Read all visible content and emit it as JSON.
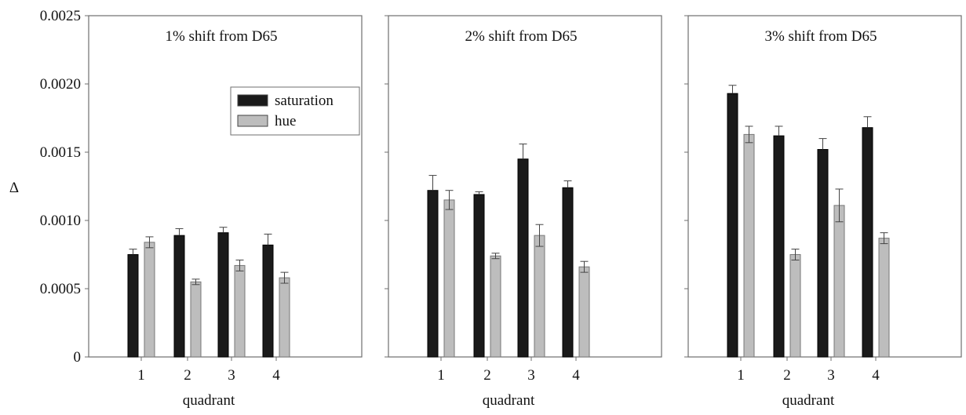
{
  "chart_data": {
    "type": "bar",
    "ylabel": "Δ",
    "ylim": [
      0,
      0.0025
    ],
    "yticks": [
      "0",
      "0.0005",
      "0.0010",
      "0.0015",
      "0.0020",
      "0.0025"
    ],
    "ytick_values": [
      0,
      0.0005,
      0.001,
      0.0015,
      0.002,
      0.0025
    ],
    "legend": {
      "placement": "top-right of first panel",
      "entries": [
        {
          "name": "saturation",
          "color": "#1a1a1a"
        },
        {
          "name": "hue",
          "color": "#bdbdbd"
        }
      ]
    },
    "panels": [
      {
        "title": "1% shift from D65",
        "xlabel": "quadrant",
        "categories": [
          "1",
          "2",
          "3",
          "4"
        ],
        "series": [
          {
            "name": "saturation",
            "values": [
              0.00075,
              0.00089,
              0.00091,
              0.00082
            ],
            "errors": [
              4e-05,
              5e-05,
              4e-05,
              8e-05
            ]
          },
          {
            "name": "hue",
            "values": [
              0.00084,
              0.00055,
              0.00067,
              0.00058
            ],
            "errors": [
              4e-05,
              2e-05,
              4e-05,
              4e-05
            ]
          }
        ]
      },
      {
        "title": "2% shift from D65",
        "xlabel": "quadrant",
        "categories": [
          "1",
          "2",
          "3",
          "4"
        ],
        "series": [
          {
            "name": "saturation",
            "values": [
              0.00122,
              0.00119,
              0.00145,
              0.00124
            ],
            "errors": [
              0.00011,
              2e-05,
              0.00011,
              5e-05
            ]
          },
          {
            "name": "hue",
            "values": [
              0.00115,
              0.00074,
              0.00089,
              0.00066
            ],
            "errors": [
              7e-05,
              2e-05,
              8e-05,
              4e-05
            ]
          }
        ]
      },
      {
        "title": "3% shift from D65",
        "xlabel": "quadrant",
        "categories": [
          "1",
          "2",
          "3",
          "4"
        ],
        "series": [
          {
            "name": "saturation",
            "values": [
              0.00193,
              0.00162,
              0.00152,
              0.00168
            ],
            "errors": [
              6e-05,
              7e-05,
              8e-05,
              8e-05
            ]
          },
          {
            "name": "hue",
            "values": [
              0.00163,
              0.00075,
              0.00111,
              0.00087
            ],
            "errors": [
              6e-05,
              4e-05,
              0.00012,
              4e-05
            ]
          }
        ]
      }
    ]
  }
}
